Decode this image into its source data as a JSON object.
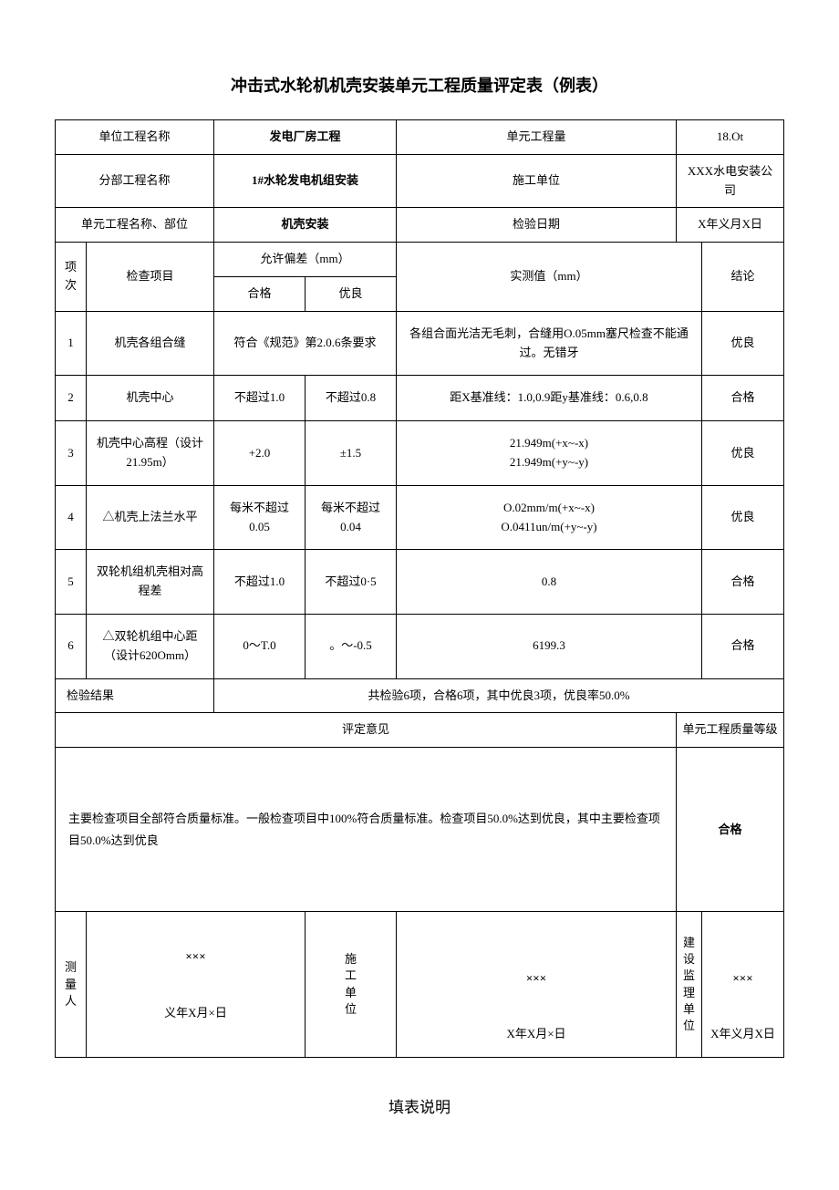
{
  "title": "冲击式水轮机机壳安装单元工程质量评定表（例表）",
  "header": {
    "r1c1_label": "单位工程名称",
    "r1c1_value": "发电厂房工程",
    "r1c2_label": "单元工程量",
    "r1c2_value": "18.Ot",
    "r2c1_label": "分部工程名称",
    "r2c1_value": "1#水轮发电机组安装",
    "r2c2_label": "施工单位",
    "r2c2_value": "XXX水电安装公司",
    "r3c1_label": "单元工程名称、部位",
    "r3c1_value": "机壳安装",
    "r3c2_label": "检验日期",
    "r3c2_value": "X年义月X日"
  },
  "columns": {
    "seq": "项次",
    "item": "检查项目",
    "tolerance": "允许偏差（mm）",
    "tol_pass": "合格",
    "tol_good": "优良",
    "measured": "实测值（mm）",
    "conclusion": "结论"
  },
  "rows": [
    {
      "seq": "1",
      "item": "机壳各组合缝",
      "tol_merged": "符合《规范》第2.0.6条要求",
      "measured": "各组合面光洁无毛刺，合缝用O.05mm塞尺检查不能通过。无错牙",
      "conclusion": "优良"
    },
    {
      "seq": "2",
      "item": "机壳中心",
      "tol_pass": "不超过1.0",
      "tol_good": "不超过0.8",
      "measured": "距X基准线：1.0,0.9距y基准线：0.6,0.8",
      "conclusion": "合格"
    },
    {
      "seq": "3",
      "item": "机壳中心高程（设计21.95m）",
      "tol_pass": "+2.0",
      "tol_good": "±1.5",
      "measured": "21.949m(+x~-x)\n21.949m(+y~-y)",
      "conclusion": "优良"
    },
    {
      "seq": "4",
      "item": "△机壳上法兰水平",
      "tol_pass": "每米不超过0.05",
      "tol_good": "每米不超过0.04",
      "measured": "O.02mm/m(+x~-x)\nO.0411un/m(+y~-y)",
      "conclusion": "优良"
    },
    {
      "seq": "5",
      "item": "双轮机组机壳相对高程差",
      "tol_pass": "不超过1.0",
      "tol_good": "不超过0·5",
      "measured": "0.8",
      "conclusion": "合格"
    },
    {
      "seq": "6",
      "item": "△双轮机组中心距（设计620Omm）",
      "tol_pass": "0～T.0",
      "tol_good": "。～-0.5",
      "measured": "6199.3",
      "conclusion": "合格"
    }
  ],
  "result": {
    "label": "检验结果",
    "text": "共检验6项，合格6项，其中优良3项，优良率50.0%"
  },
  "opinion": {
    "header_left": "评定意见",
    "header_right": "单元工程质量等级",
    "text": "主要检查项目全部符合质量标准。一般检查项目中100%符合质量标准。检查项目50.0%达到优良，其中主要检查项目50.0%达到优良",
    "grade": "合格"
  },
  "signatures": {
    "surveyor_label": "测量人",
    "surveyor_name": "×××",
    "surveyor_date": "义年X月×日",
    "construction_label": "施工单位",
    "construction_name": "×××",
    "construction_date": "X年X月×日",
    "supervisor_label": "建设监理单位",
    "supervisor_name": "×××",
    "supervisor_date": "X年义月X日"
  },
  "footer": "填表说明"
}
